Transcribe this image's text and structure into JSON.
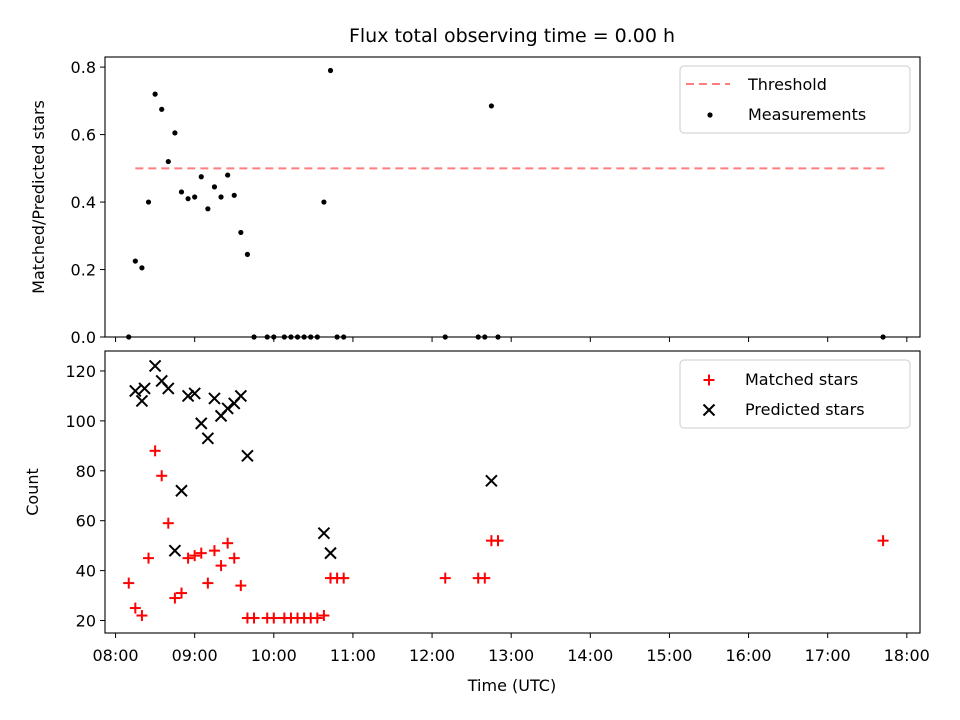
{
  "figure": {
    "title": "Flux total observing time = 0.00 h",
    "xlabel": "Time (UTC)"
  },
  "chart_data": [
    {
      "type": "scatter",
      "panel": "top",
      "ylabel": "Matched/Predicted stars",
      "ylim": [
        0,
        0.83
      ],
      "yticks": [
        0.0,
        0.2,
        0.4,
        0.6,
        0.8
      ],
      "ytick_labels": [
        "0.0",
        "0.2",
        "0.4",
        "0.6",
        "0.8"
      ],
      "legend_position": "top-right",
      "threshold": {
        "name": "Threshold",
        "y": 0.5,
        "x_range": [
          "08:15",
          "17:45"
        ],
        "color": "#ff7f7f",
        "style": "dashed"
      },
      "series": [
        {
          "name": "Measurements",
          "color": "#000000",
          "marker": "dot",
          "points": [
            [
              "08:10",
              0.0
            ],
            [
              "08:15",
              0.225
            ],
            [
              "08:20",
              0.205
            ],
            [
              "08:25",
              0.4
            ],
            [
              "08:30",
              0.72
            ],
            [
              "08:35",
              0.675
            ],
            [
              "08:40",
              0.52
            ],
            [
              "08:45",
              0.605
            ],
            [
              "08:50",
              0.43
            ],
            [
              "08:55",
              0.41
            ],
            [
              "09:00",
              0.415
            ],
            [
              "09:05",
              0.475
            ],
            [
              "09:10",
              0.38
            ],
            [
              "09:15",
              0.445
            ],
            [
              "09:20",
              0.415
            ],
            [
              "09:25",
              0.48
            ],
            [
              "09:30",
              0.42
            ],
            [
              "09:35",
              0.31
            ],
            [
              "09:40",
              0.245
            ],
            [
              "09:45",
              0.0
            ],
            [
              "09:55",
              0.0
            ],
            [
              "10:00",
              0.0
            ],
            [
              "10:08",
              0.0
            ],
            [
              "10:13",
              0.0
            ],
            [
              "10:18",
              0.0
            ],
            [
              "10:23",
              0.0
            ],
            [
              "10:28",
              0.0
            ],
            [
              "10:33",
              0.0
            ],
            [
              "10:38",
              0.4
            ],
            [
              "10:43",
              0.79
            ],
            [
              "10:48",
              0.0
            ],
            [
              "10:53",
              0.0
            ],
            [
              "12:10",
              0.0
            ],
            [
              "12:35",
              0.0
            ],
            [
              "12:40",
              0.0
            ],
            [
              "12:45",
              0.685
            ],
            [
              "12:50",
              0.0
            ],
            [
              "17:42",
              0.0
            ]
          ]
        }
      ]
    },
    {
      "type": "scatter",
      "panel": "bottom",
      "ylabel": "Count",
      "ylim": [
        15,
        128
      ],
      "yticks": [
        20,
        40,
        60,
        80,
        100,
        120
      ],
      "ytick_labels": [
        "20",
        "40",
        "60",
        "80",
        "100",
        "120"
      ],
      "xlim": [
        "07:52",
        "18:10"
      ],
      "xticks": [
        "08:00",
        "09:00",
        "10:00",
        "11:00",
        "12:00",
        "13:00",
        "14:00",
        "15:00",
        "16:00",
        "17:00",
        "18:00"
      ],
      "xtick_labels": [
        "08:00",
        "09:00",
        "10:00",
        "11:00",
        "12:00",
        "13:00",
        "14:00",
        "15:00",
        "16:00",
        "17:00",
        "18:00"
      ],
      "legend_position": "top-right",
      "series": [
        {
          "name": "Matched stars",
          "color": "#ff0000",
          "marker": "plus",
          "points": [
            [
              "08:10",
              35
            ],
            [
              "08:15",
              25
            ],
            [
              "08:20",
              22
            ],
            [
              "08:25",
              45
            ],
            [
              "08:30",
              88
            ],
            [
              "08:35",
              78
            ],
            [
              "08:40",
              59
            ],
            [
              "08:45",
              29
            ],
            [
              "08:50",
              31
            ],
            [
              "08:55",
              45
            ],
            [
              "09:00",
              46
            ],
            [
              "09:05",
              47
            ],
            [
              "09:10",
              35
            ],
            [
              "09:15",
              48
            ],
            [
              "09:20",
              42
            ],
            [
              "09:25",
              51
            ],
            [
              "09:30",
              45
            ],
            [
              "09:35",
              34
            ],
            [
              "09:40",
              21
            ],
            [
              "09:45",
              21
            ],
            [
              "09:55",
              21
            ],
            [
              "10:00",
              21
            ],
            [
              "10:08",
              21
            ],
            [
              "10:13",
              21
            ],
            [
              "10:18",
              21
            ],
            [
              "10:23",
              21
            ],
            [
              "10:28",
              21
            ],
            [
              "10:33",
              21
            ],
            [
              "10:38",
              22
            ],
            [
              "10:43",
              37
            ],
            [
              "10:48",
              37
            ],
            [
              "10:53",
              37
            ],
            [
              "12:10",
              37
            ],
            [
              "12:35",
              37
            ],
            [
              "12:40",
              37
            ],
            [
              "12:45",
              52
            ],
            [
              "12:50",
              52
            ],
            [
              "17:42",
              52
            ]
          ]
        },
        {
          "name": "Predicted stars",
          "color": "#000000",
          "marker": "x",
          "points": [
            [
              "08:15",
              112
            ],
            [
              "08:20",
              108
            ],
            [
              "08:22",
              113
            ],
            [
              "08:30",
              122
            ],
            [
              "08:35",
              116
            ],
            [
              "08:40",
              113
            ],
            [
              "08:45",
              48
            ],
            [
              "08:50",
              72
            ],
            [
              "08:55",
              110
            ],
            [
              "09:00",
              111
            ],
            [
              "09:05",
              99
            ],
            [
              "09:10",
              93
            ],
            [
              "09:15",
              109
            ],
            [
              "09:20",
              102
            ],
            [
              "09:25",
              105
            ],
            [
              "09:30",
              107
            ],
            [
              "09:35",
              110
            ],
            [
              "09:40",
              86
            ],
            [
              "10:38",
              55
            ],
            [
              "10:43",
              47
            ],
            [
              "12:45",
              76
            ]
          ]
        }
      ]
    }
  ]
}
